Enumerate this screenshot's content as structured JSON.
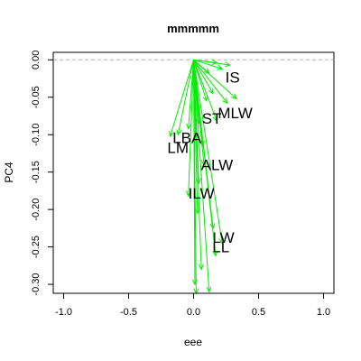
{
  "chart_data": {
    "type": "biplot-arrows",
    "title": "mmmmm",
    "xlabel": "eee",
    "ylabel": "PC4",
    "xlim": [
      -1.08,
      1.08
    ],
    "ylim": [
      -0.312,
      0.01
    ],
    "x_ticks": [
      -1.0,
      -0.5,
      0.0,
      0.5,
      1.0
    ],
    "x_tick_labels": [
      "-1.0",
      "-0.5",
      "0.0",
      "0.5",
      "1.0"
    ],
    "y_ticks": [
      0.0,
      -0.05,
      -0.1,
      -0.15,
      -0.2,
      -0.25,
      -0.3
    ],
    "y_tick_labels": [
      "0.00",
      "-0.05",
      "-0.10",
      "-0.15",
      "-0.20",
      "-0.25",
      "-0.30"
    ],
    "reference_line_y": 0.0,
    "arrow_color": "#00ee00",
    "origin": [
      0.0,
      0.0
    ],
    "arrows": [
      {
        "x": 0.28,
        "y": -0.007
      },
      {
        "x": 0.18,
        "y": -0.004
      },
      {
        "x": 0.22,
        "y": -0.012
      },
      {
        "x": 0.12,
        "y": -0.018
      },
      {
        "x": 0.33,
        "y": -0.052
      },
      {
        "x": 0.26,
        "y": -0.058
      },
      {
        "x": 0.15,
        "y": -0.045
      },
      {
        "x": 0.1,
        "y": -0.055
      },
      {
        "x": 0.18,
        "y": -0.082
      },
      {
        "x": 0.04,
        "y": -0.085
      },
      {
        "x": -0.12,
        "y": -0.1
      },
      {
        "x": -0.18,
        "y": -0.102
      },
      {
        "x": -0.04,
        "y": -0.092
      },
      {
        "x": 0.07,
        "y": -0.115
      },
      {
        "x": 0.08,
        "y": -0.14
      },
      {
        "x": 0.04,
        "y": -0.165
      },
      {
        "x": -0.04,
        "y": -0.182
      },
      {
        "x": 0.03,
        "y": -0.205
      },
      {
        "x": 0.15,
        "y": -0.225
      },
      {
        "x": 0.22,
        "y": -0.245
      },
      {
        "x": 0.17,
        "y": -0.262
      },
      {
        "x": 0.06,
        "y": -0.28
      },
      {
        "x": 0.01,
        "y": -0.3
      },
      {
        "x": 0.12,
        "y": -0.31
      },
      {
        "x": 0.02,
        "y": -0.312
      }
    ],
    "labels": [
      {
        "text": "IS",
        "x": 0.3,
        "y": -0.023
      },
      {
        "text": "MLW",
        "x": 0.32,
        "y": -0.071
      },
      {
        "text": "ST",
        "x": 0.14,
        "y": -0.078
      },
      {
        "text": "LBA",
        "x": -0.05,
        "y": -0.104
      },
      {
        "text": "LM",
        "x": -0.12,
        "y": -0.117
      },
      {
        "text": "ALW",
        "x": 0.18,
        "y": -0.14
      },
      {
        "text": "ILW",
        "x": 0.06,
        "y": -0.178
      },
      {
        "text": "LW",
        "x": 0.23,
        "y": -0.237
      },
      {
        "text": "LL",
        "x": 0.21,
        "y": -0.25
      }
    ]
  }
}
